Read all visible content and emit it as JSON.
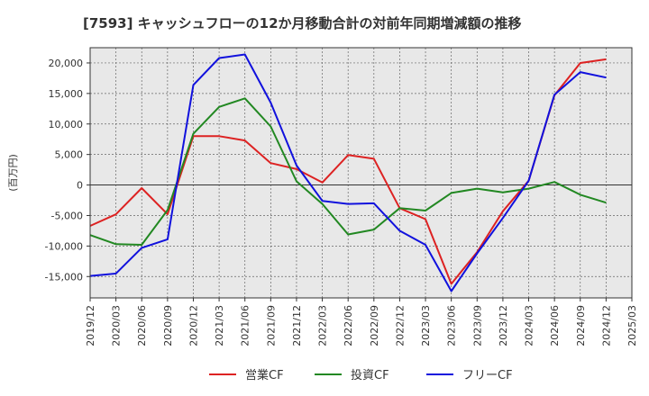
{
  "chart_data": {
    "type": "line",
    "title": "[7593]  キャッシュフローの12か月移動合計の対前年同期増減額の推移",
    "ylabel": "(百万円)",
    "xlabel": "",
    "ylim": [
      -18500,
      22500
    ],
    "yticks": [
      20000,
      15000,
      10000,
      5000,
      0,
      -5000,
      -10000,
      -15000
    ],
    "ytick_labels": [
      "20,000",
      "15,000",
      "10,000",
      "5,000",
      "0",
      "-5,000",
      "-10,000",
      "-15,000"
    ],
    "xtick_labels": [
      "2019/12",
      "2020/03",
      "2020/06",
      "2020/09",
      "2020/12",
      "2021/03",
      "2021/06",
      "2021/09",
      "2021/12",
      "2022/03",
      "2022/06",
      "2022/09",
      "2022/12",
      "2023/03",
      "2023/06",
      "2023/09",
      "2023/12",
      "2024/03",
      "2024/06",
      "2024/09",
      "2024/12",
      "2025/03"
    ],
    "grid": true,
    "legend_position": "bottom",
    "series": [
      {
        "name": "営業CF",
        "color": "#dd2222",
        "values": [
          -6700,
          -4800,
          -500,
          -4800,
          8000,
          8000,
          7300,
          3600,
          2600,
          400,
          4900,
          4300,
          -3800,
          -5600,
          -16200,
          -11000,
          -4300,
          700,
          14700,
          20000,
          20600
        ]
      },
      {
        "name": "投資CF",
        "color": "#228822",
        "values": [
          -8200,
          -9700,
          -9800,
          -4100,
          8400,
          12800,
          14200,
          9600,
          600,
          -3100,
          -8100,
          -7300,
          -3800,
          -4200,
          -1300,
          -600,
          -1200,
          -600,
          500,
          -1600,
          -2900
        ]
      },
      {
        "name": "フリーCF",
        "color": "#1111dd",
        "values": [
          -14900,
          -14500,
          -10300,
          -8900,
          16400,
          20800,
          21400,
          13500,
          3200,
          -2600,
          -3100,
          -3000,
          -7500,
          -9800,
          -17400,
          -11200,
          -5400,
          700,
          14800,
          18500,
          17600
        ]
      }
    ]
  }
}
